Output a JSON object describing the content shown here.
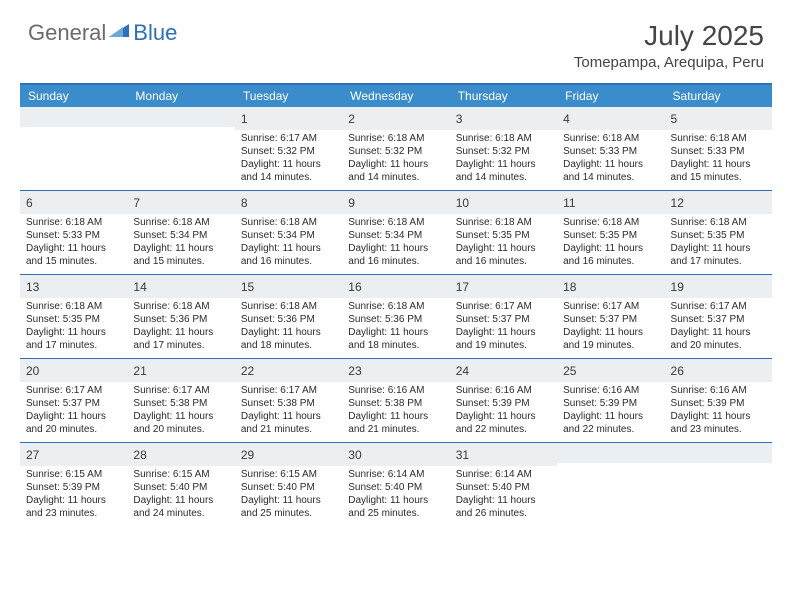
{
  "brand": {
    "text_gray": "General",
    "text_blue": "Blue",
    "gray_color": "#6b6b6b",
    "blue_color": "#2d6fb8"
  },
  "header": {
    "title": "July 2025",
    "location": "Tomepampa, Arequipa, Peru"
  },
  "colors": {
    "header_bar": "#3b8ccb",
    "rule": "#2d6fb8",
    "daynum_bg": "#eceff1",
    "text": "#2b2b2b",
    "title_text": "#454545"
  },
  "day_names": [
    "Sunday",
    "Monday",
    "Tuesday",
    "Wednesday",
    "Thursday",
    "Friday",
    "Saturday"
  ],
  "weeks": [
    [
      null,
      null,
      {
        "n": "1",
        "sr": "6:17 AM",
        "ss": "5:32 PM",
        "dl": "11 hours and 14 minutes."
      },
      {
        "n": "2",
        "sr": "6:18 AM",
        "ss": "5:32 PM",
        "dl": "11 hours and 14 minutes."
      },
      {
        "n": "3",
        "sr": "6:18 AM",
        "ss": "5:32 PM",
        "dl": "11 hours and 14 minutes."
      },
      {
        "n": "4",
        "sr": "6:18 AM",
        "ss": "5:33 PM",
        "dl": "11 hours and 14 minutes."
      },
      {
        "n": "5",
        "sr": "6:18 AM",
        "ss": "5:33 PM",
        "dl": "11 hours and 15 minutes."
      }
    ],
    [
      {
        "n": "6",
        "sr": "6:18 AM",
        "ss": "5:33 PM",
        "dl": "11 hours and 15 minutes."
      },
      {
        "n": "7",
        "sr": "6:18 AM",
        "ss": "5:34 PM",
        "dl": "11 hours and 15 minutes."
      },
      {
        "n": "8",
        "sr": "6:18 AM",
        "ss": "5:34 PM",
        "dl": "11 hours and 16 minutes."
      },
      {
        "n": "9",
        "sr": "6:18 AM",
        "ss": "5:34 PM",
        "dl": "11 hours and 16 minutes."
      },
      {
        "n": "10",
        "sr": "6:18 AM",
        "ss": "5:35 PM",
        "dl": "11 hours and 16 minutes."
      },
      {
        "n": "11",
        "sr": "6:18 AM",
        "ss": "5:35 PM",
        "dl": "11 hours and 16 minutes."
      },
      {
        "n": "12",
        "sr": "6:18 AM",
        "ss": "5:35 PM",
        "dl": "11 hours and 17 minutes."
      }
    ],
    [
      {
        "n": "13",
        "sr": "6:18 AM",
        "ss": "5:35 PM",
        "dl": "11 hours and 17 minutes."
      },
      {
        "n": "14",
        "sr": "6:18 AM",
        "ss": "5:36 PM",
        "dl": "11 hours and 17 minutes."
      },
      {
        "n": "15",
        "sr": "6:18 AM",
        "ss": "5:36 PM",
        "dl": "11 hours and 18 minutes."
      },
      {
        "n": "16",
        "sr": "6:18 AM",
        "ss": "5:36 PM",
        "dl": "11 hours and 18 minutes."
      },
      {
        "n": "17",
        "sr": "6:17 AM",
        "ss": "5:37 PM",
        "dl": "11 hours and 19 minutes."
      },
      {
        "n": "18",
        "sr": "6:17 AM",
        "ss": "5:37 PM",
        "dl": "11 hours and 19 minutes."
      },
      {
        "n": "19",
        "sr": "6:17 AM",
        "ss": "5:37 PM",
        "dl": "11 hours and 20 minutes."
      }
    ],
    [
      {
        "n": "20",
        "sr": "6:17 AM",
        "ss": "5:37 PM",
        "dl": "11 hours and 20 minutes."
      },
      {
        "n": "21",
        "sr": "6:17 AM",
        "ss": "5:38 PM",
        "dl": "11 hours and 20 minutes."
      },
      {
        "n": "22",
        "sr": "6:17 AM",
        "ss": "5:38 PM",
        "dl": "11 hours and 21 minutes."
      },
      {
        "n": "23",
        "sr": "6:16 AM",
        "ss": "5:38 PM",
        "dl": "11 hours and 21 minutes."
      },
      {
        "n": "24",
        "sr": "6:16 AM",
        "ss": "5:39 PM",
        "dl": "11 hours and 22 minutes."
      },
      {
        "n": "25",
        "sr": "6:16 AM",
        "ss": "5:39 PM",
        "dl": "11 hours and 22 minutes."
      },
      {
        "n": "26",
        "sr": "6:16 AM",
        "ss": "5:39 PM",
        "dl": "11 hours and 23 minutes."
      }
    ],
    [
      {
        "n": "27",
        "sr": "6:15 AM",
        "ss": "5:39 PM",
        "dl": "11 hours and 23 minutes."
      },
      {
        "n": "28",
        "sr": "6:15 AM",
        "ss": "5:40 PM",
        "dl": "11 hours and 24 minutes."
      },
      {
        "n": "29",
        "sr": "6:15 AM",
        "ss": "5:40 PM",
        "dl": "11 hours and 25 minutes."
      },
      {
        "n": "30",
        "sr": "6:14 AM",
        "ss": "5:40 PM",
        "dl": "11 hours and 25 minutes."
      },
      {
        "n": "31",
        "sr": "6:14 AM",
        "ss": "5:40 PM",
        "dl": "11 hours and 26 minutes."
      },
      null,
      null
    ]
  ],
  "labels": {
    "sunrise": "Sunrise:",
    "sunset": "Sunset:",
    "daylight": "Daylight:"
  }
}
